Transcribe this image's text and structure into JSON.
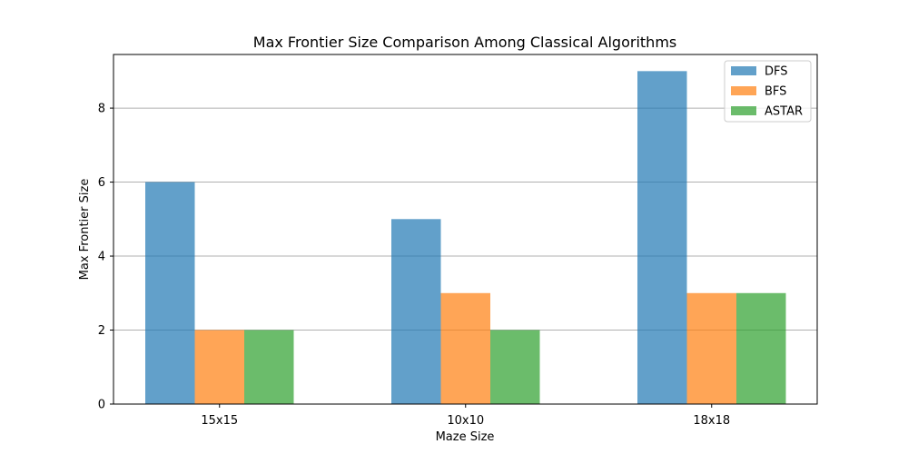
{
  "chart_data": {
    "type": "bar",
    "title": "Max Frontier Size Comparison Among Classical Algorithms",
    "xlabel": "Maze Size",
    "ylabel": "Max Frontier Size",
    "categories": [
      "15x15",
      "10x10",
      "18x18"
    ],
    "series": [
      {
        "name": "DFS",
        "values": [
          6,
          5,
          9
        ],
        "color": "#1f77b4"
      },
      {
        "name": "BFS",
        "values": [
          2,
          3,
          3
        ],
        "color": "#ff7f0e"
      },
      {
        "name": "ASTAR",
        "values": [
          2,
          2,
          3
        ],
        "color": "#2ca02c"
      }
    ],
    "bar_opacity": 0.7,
    "ylim": [
      0,
      9.45
    ],
    "yticks": [
      0,
      2,
      4,
      6,
      8
    ],
    "grid": "y-axis",
    "legend_position": "top-right"
  }
}
